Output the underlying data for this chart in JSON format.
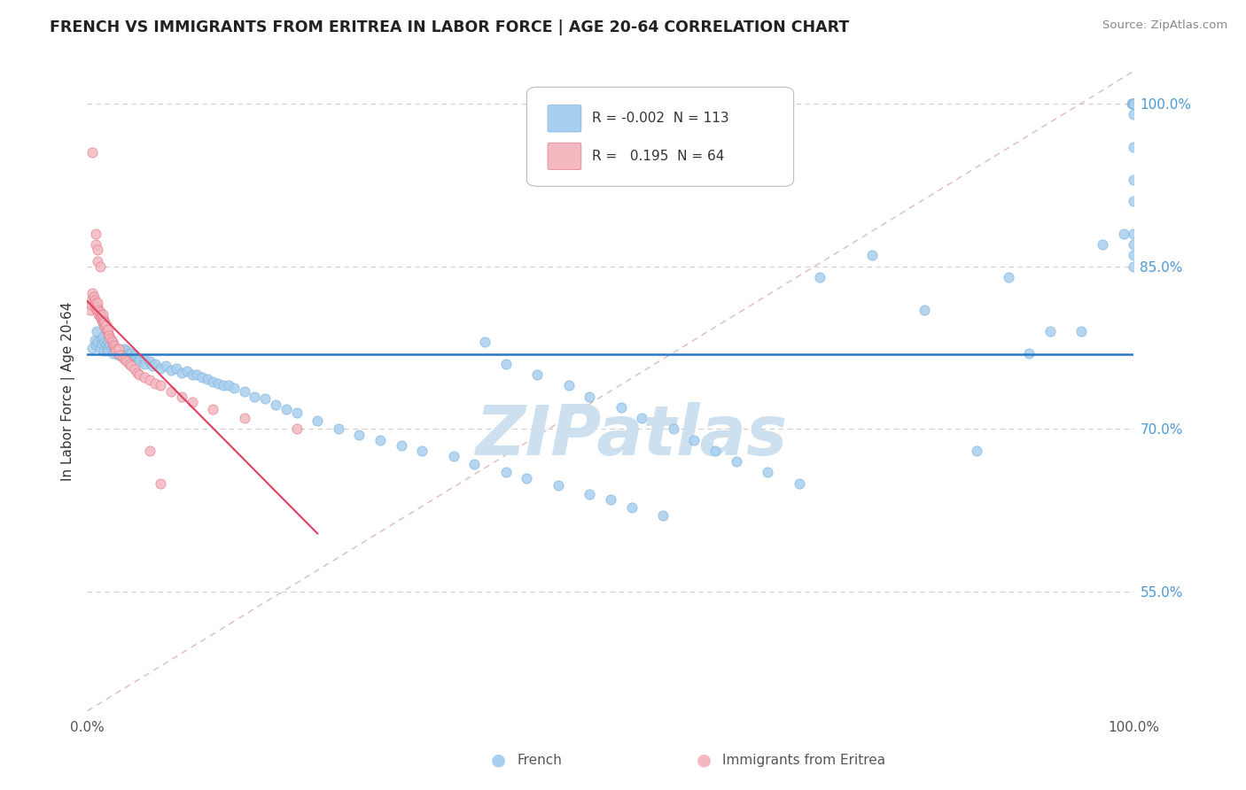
{
  "title": "FRENCH VS IMMIGRANTS FROM ERITREA IN LABOR FORCE | AGE 20-64 CORRELATION CHART",
  "source": "Source: ZipAtlas.com",
  "ylabel": "In Labor Force | Age 20-64",
  "xlim": [
    0.0,
    1.0
  ],
  "ylim": [
    0.44,
    1.03
  ],
  "y_ticks": [
    0.55,
    0.7,
    0.85,
    1.0
  ],
  "y_tick_labels": [
    "55.0%",
    "70.0%",
    "85.0%",
    "100.0%"
  ],
  "legend_R_blue": "-0.002",
  "legend_N_blue": "113",
  "legend_R_pink": "0.195",
  "legend_N_pink": "64",
  "blue_color": "#a8cff0",
  "blue_edge_color": "#7aafd4",
  "pink_color": "#f4b8c0",
  "pink_edge_color": "#e07888",
  "trend_blue_color": "#2878c8",
  "trend_pink_color": "#e04060",
  "ref_line_color": "#ddbbbb",
  "grid_color": "#cccccc",
  "watermark_color": "#cce0f0",
  "blue_x": [
    0.005,
    0.007,
    0.008,
    0.009,
    0.01,
    0.012,
    0.013,
    0.014,
    0.015,
    0.016,
    0.017,
    0.018,
    0.019,
    0.02,
    0.02,
    0.022,
    0.023,
    0.025,
    0.025,
    0.027,
    0.028,
    0.03,
    0.03,
    0.032,
    0.033,
    0.035,
    0.035,
    0.038,
    0.04,
    0.04,
    0.042,
    0.045,
    0.045,
    0.048,
    0.05,
    0.05,
    0.055,
    0.055,
    0.06,
    0.062,
    0.065,
    0.07,
    0.075,
    0.08,
    0.085,
    0.09,
    0.095,
    0.1,
    0.105,
    0.11,
    0.115,
    0.12,
    0.125,
    0.13,
    0.135,
    0.14,
    0.15,
    0.16,
    0.17,
    0.18,
    0.19,
    0.2,
    0.22,
    0.24,
    0.26,
    0.28,
    0.3,
    0.32,
    0.35,
    0.37,
    0.4,
    0.42,
    0.45,
    0.48,
    0.5,
    0.52,
    0.55,
    0.38,
    0.4,
    0.43,
    0.46,
    0.48,
    0.51,
    0.53,
    0.56,
    0.58,
    0.6,
    0.62,
    0.65,
    0.68,
    0.7,
    0.75,
    0.8,
    0.85,
    0.88,
    0.9,
    0.92,
    0.95,
    0.97,
    0.99,
    0.998,
    0.999,
    0.999,
    1.0,
    1.0,
    1.0,
    1.0,
    1.0,
    1.0,
    1.0,
    1.0,
    1.0,
    1.0
  ],
  "blue_y": [
    0.775,
    0.782,
    0.778,
    0.79,
    0.78,
    0.775,
    0.783,
    0.779,
    0.785,
    0.772,
    0.78,
    0.778,
    0.774,
    0.78,
    0.772,
    0.778,
    0.775,
    0.776,
    0.77,
    0.775,
    0.772,
    0.774,
    0.768,
    0.772,
    0.77,
    0.774,
    0.768,
    0.772,
    0.77,
    0.766,
    0.77,
    0.768,
    0.764,
    0.766,
    0.765,
    0.762,
    0.764,
    0.76,
    0.762,
    0.758,
    0.76,
    0.756,
    0.758,
    0.754,
    0.756,
    0.752,
    0.753,
    0.75,
    0.75,
    0.748,
    0.746,
    0.744,
    0.742,
    0.74,
    0.74,
    0.738,
    0.735,
    0.73,
    0.728,
    0.722,
    0.718,
    0.715,
    0.708,
    0.7,
    0.695,
    0.69,
    0.685,
    0.68,
    0.675,
    0.668,
    0.66,
    0.655,
    0.648,
    0.64,
    0.635,
    0.628,
    0.62,
    0.78,
    0.76,
    0.75,
    0.74,
    0.73,
    0.72,
    0.71,
    0.7,
    0.69,
    0.68,
    0.67,
    0.66,
    0.65,
    0.84,
    0.86,
    0.81,
    0.68,
    0.84,
    0.77,
    0.79,
    0.79,
    0.87,
    0.88,
    1.0,
    1.0,
    1.0,
    1.0,
    1.0,
    0.99,
    0.88,
    0.87,
    0.86,
    0.85,
    0.91,
    0.93,
    0.96
  ],
  "pink_x": [
    0.003,
    0.004,
    0.005,
    0.005,
    0.006,
    0.006,
    0.007,
    0.007,
    0.008,
    0.008,
    0.009,
    0.009,
    0.01,
    0.01,
    0.01,
    0.011,
    0.011,
    0.012,
    0.012,
    0.013,
    0.013,
    0.014,
    0.014,
    0.015,
    0.015,
    0.015,
    0.016,
    0.016,
    0.017,
    0.017,
    0.018,
    0.018,
    0.019,
    0.02,
    0.02,
    0.021,
    0.022,
    0.023,
    0.024,
    0.025,
    0.026,
    0.027,
    0.028,
    0.03,
    0.03,
    0.032,
    0.034,
    0.036,
    0.038,
    0.04,
    0.042,
    0.045,
    0.048,
    0.05,
    0.055,
    0.06,
    0.065,
    0.07,
    0.08,
    0.09,
    0.1,
    0.12,
    0.15,
    0.2
  ],
  "pink_y": [
    0.81,
    0.815,
    0.82,
    0.825,
    0.818,
    0.822,
    0.815,
    0.819,
    0.812,
    0.816,
    0.81,
    0.814,
    0.808,
    0.812,
    0.816,
    0.806,
    0.81,
    0.804,
    0.808,
    0.802,
    0.806,
    0.8,
    0.804,
    0.798,
    0.802,
    0.806,
    0.796,
    0.8,
    0.794,
    0.798,
    0.792,
    0.796,
    0.79,
    0.788,
    0.792,
    0.786,
    0.784,
    0.782,
    0.78,
    0.778,
    0.776,
    0.774,
    0.772,
    0.77,
    0.774,
    0.768,
    0.766,
    0.764,
    0.762,
    0.76,
    0.758,
    0.755,
    0.752,
    0.75,
    0.748,
    0.745,
    0.742,
    0.74,
    0.735,
    0.73,
    0.725,
    0.718,
    0.71,
    0.7
  ],
  "pink_outliers_x": [
    0.005,
    0.008,
    0.008,
    0.01,
    0.01,
    0.012,
    0.06,
    0.07
  ],
  "pink_outliers_y": [
    0.955,
    0.88,
    0.87,
    0.865,
    0.855,
    0.85,
    0.68,
    0.65
  ]
}
